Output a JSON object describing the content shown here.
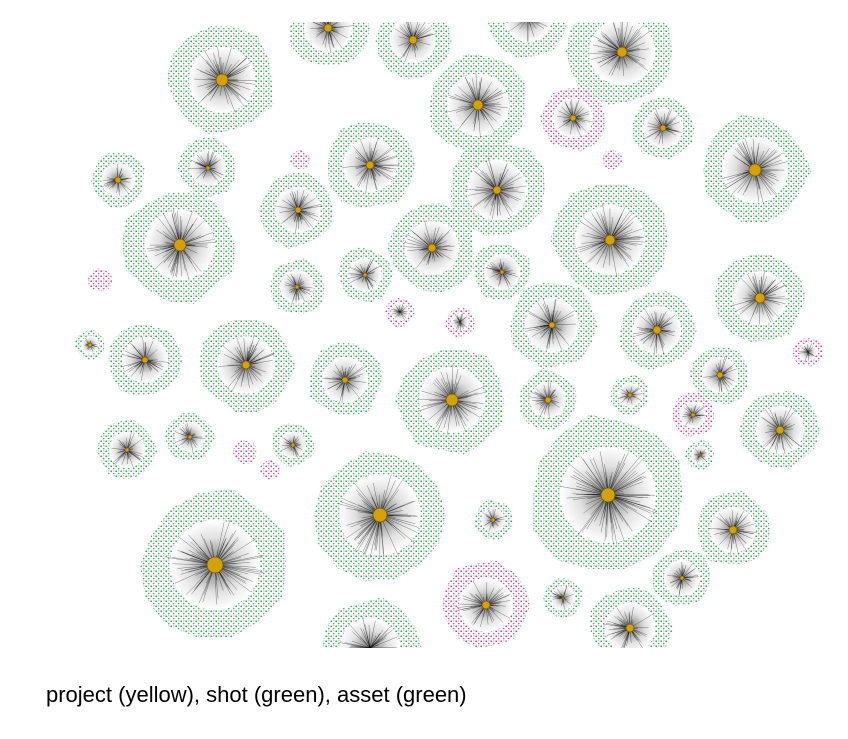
{
  "caption": "project (yellow), shot (green), asset (green)"
}
